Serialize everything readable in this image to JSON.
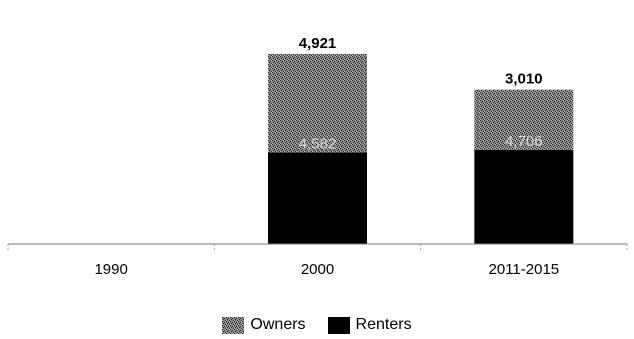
{
  "chart_data": {
    "type": "bar",
    "stacked": true,
    "categories": [
      "1990",
      "2000",
      "2011-2015"
    ],
    "series": [
      {
        "name": "Renters",
        "values": [
          0,
          4582,
          4706
        ],
        "color": "#000000",
        "labels": [
          "",
          "4,582",
          "4,706"
        ]
      },
      {
        "name": "Owners",
        "values": [
          0,
          4921,
          3010
        ],
        "color": "#6e6e6e",
        "pattern": "crosshatch",
        "labels": [
          "",
          "4,921",
          "3,010"
        ]
      }
    ],
    "ylim": [
      0,
      11000
    ],
    "grid": false,
    "legend_position": "bottom-center"
  },
  "legend": {
    "owners_label": "Owners",
    "renters_label": "Renters"
  }
}
